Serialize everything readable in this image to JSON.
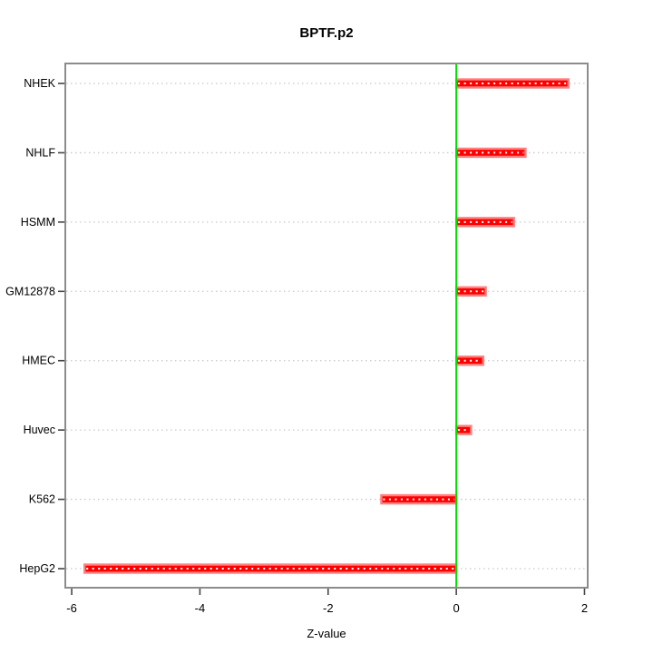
{
  "chart_data": {
    "type": "bar",
    "orientation": "horizontal",
    "title": "BPTF.p2",
    "xlabel": "Z-value",
    "ylabel": "",
    "categories": [
      "NHEK",
      "NHLF",
      "HSMM",
      "GM12878",
      "HMEC",
      "Huvec",
      "K562",
      "HepG2"
    ],
    "values": [
      1.75,
      1.08,
      0.9,
      0.46,
      0.42,
      0.23,
      -1.17,
      -5.8
    ],
    "xlim": [
      -6.1,
      2.05
    ],
    "x_ticks": [
      -6,
      -4,
      -2,
      0,
      2
    ],
    "x_tick_labels": [
      "-6",
      "-4",
      "-2",
      "0",
      "2"
    ],
    "grid": "dotted horizontal line at each category row",
    "legend": "none",
    "zero_line_x": 0,
    "colors": {
      "bar_fill": "#ff0000",
      "bar_edge": "#ff8080",
      "bar_pattern": "#ffffff",
      "zero_line": "#00e000",
      "grid": "#c8c8c8",
      "box": "#8c8c8c",
      "tick": "#454545",
      "text": "#000000",
      "background": "#ffffff"
    }
  }
}
